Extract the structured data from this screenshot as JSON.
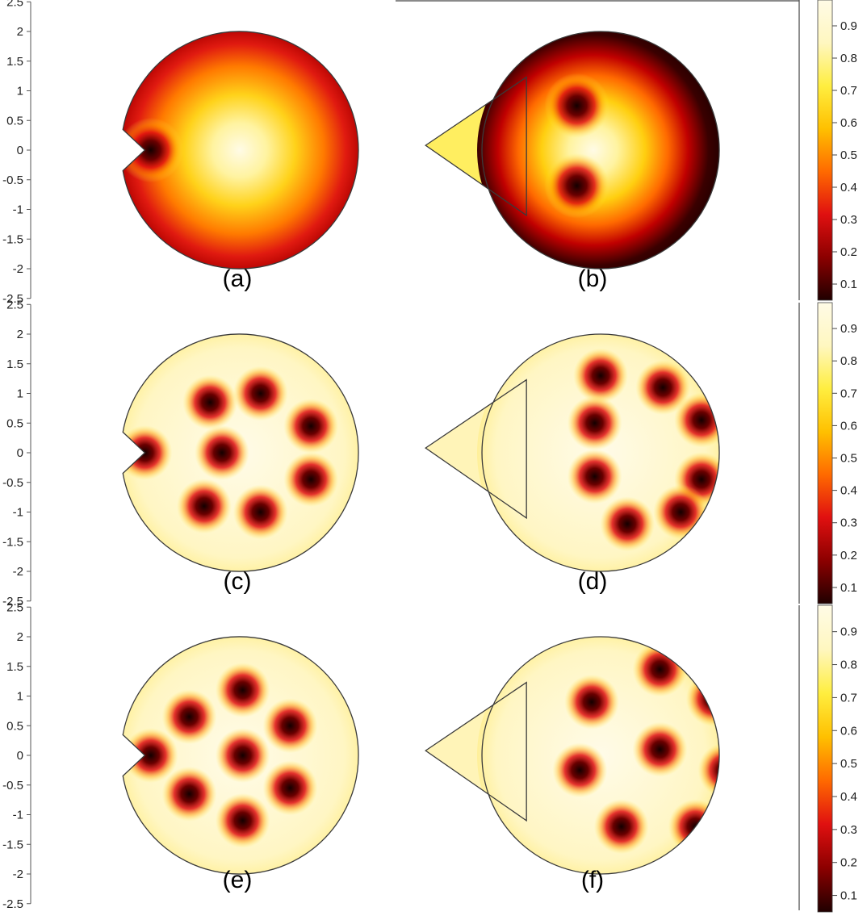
{
  "figure": {
    "panels": [
      {
        "label": "(a)",
        "geometry": "notched-disk",
        "vortices": [
          [
            -1.5,
            0.0
          ]
        ],
        "outer_dark": true,
        "dark_strength": 1.0,
        "vortex_radius": 0.26
      },
      {
        "label": "(b)",
        "geometry": "disk-with-triangle",
        "vortices": [
          [
            -0.4,
            0.75
          ],
          [
            -0.4,
            -0.6
          ]
        ],
        "outer_dark": true,
        "dark_strength": 1.0,
        "vortex_radius": 0.26
      },
      {
        "label": "(c)",
        "geometry": "notched-disk",
        "vortices": [
          [
            -1.6,
            0.0
          ],
          [
            -0.5,
            0.85
          ],
          [
            0.35,
            1.0
          ],
          [
            1.2,
            0.45
          ],
          [
            -0.3,
            0.0
          ],
          [
            1.2,
            -0.45
          ],
          [
            -0.6,
            -0.9
          ],
          [
            0.35,
            -1.0
          ]
        ],
        "outer_dark": false,
        "vortex_radius": 0.22
      },
      {
        "label": "(d)",
        "geometry": "disk-with-triangle",
        "vortices": [
          [
            0.0,
            1.3
          ],
          [
            1.05,
            1.1
          ],
          [
            1.7,
            0.55
          ],
          [
            -0.1,
            0.5
          ],
          [
            -0.1,
            -0.4
          ],
          [
            1.7,
            -0.45
          ],
          [
            0.45,
            -1.2
          ],
          [
            1.35,
            -1.0
          ]
        ],
        "outer_dark": false,
        "vortex_radius": 0.22
      },
      {
        "label": "(e)",
        "geometry": "notched-disk",
        "vortices": [
          [
            -1.5,
            0.0
          ],
          [
            -0.85,
            0.65
          ],
          [
            0.05,
            1.1
          ],
          [
            0.85,
            0.5
          ],
          [
            0.05,
            0.0
          ],
          [
            -0.85,
            -0.65
          ],
          [
            0.85,
            -0.55
          ],
          [
            0.05,
            -1.1
          ]
        ],
        "outer_dark": false,
        "vortex_radius": 0.22
      },
      {
        "label": "(f)",
        "geometry": "disk-with-triangle",
        "vortices": [
          [
            1.0,
            1.45
          ],
          [
            -0.15,
            0.9
          ],
          [
            1.9,
            0.95
          ],
          [
            1.0,
            0.1
          ],
          [
            -0.35,
            -0.25
          ],
          [
            2.1,
            -0.25
          ],
          [
            0.35,
            -1.2
          ],
          [
            1.6,
            -1.2
          ]
        ],
        "outer_dark": false,
        "vortex_radius": 0.22
      }
    ],
    "axis": {
      "ticks": [
        "2.5",
        "2",
        "1.5",
        "1",
        "0.5",
        "0",
        "-0.5",
        "-1",
        "-1.5",
        "-2",
        "-2.5"
      ],
      "values": [
        2.5,
        2,
        1.5,
        1,
        0.5,
        0,
        -0.5,
        -1,
        -1.5,
        -2,
        -2.5
      ]
    },
    "colorbar": {
      "ticks": [
        "0.9",
        "0.8",
        "0.7",
        "0.6",
        "0.5",
        "0.4",
        "0.3",
        "0.2",
        "0.1"
      ],
      "values": [
        0.9,
        0.8,
        0.7,
        0.6,
        0.5,
        0.4,
        0.3,
        0.2,
        0.1
      ],
      "range": [
        0.05,
        0.98
      ],
      "colormap": [
        "#200000",
        "#8c0000",
        "#e01010",
        "#ff6a00",
        "#ffc000",
        "#ffee40",
        "#fff7c0",
        "#fffbe6"
      ]
    },
    "colors": {
      "outline": "#3a3a3a",
      "background": "#ffffff",
      "label": "#000000"
    }
  }
}
